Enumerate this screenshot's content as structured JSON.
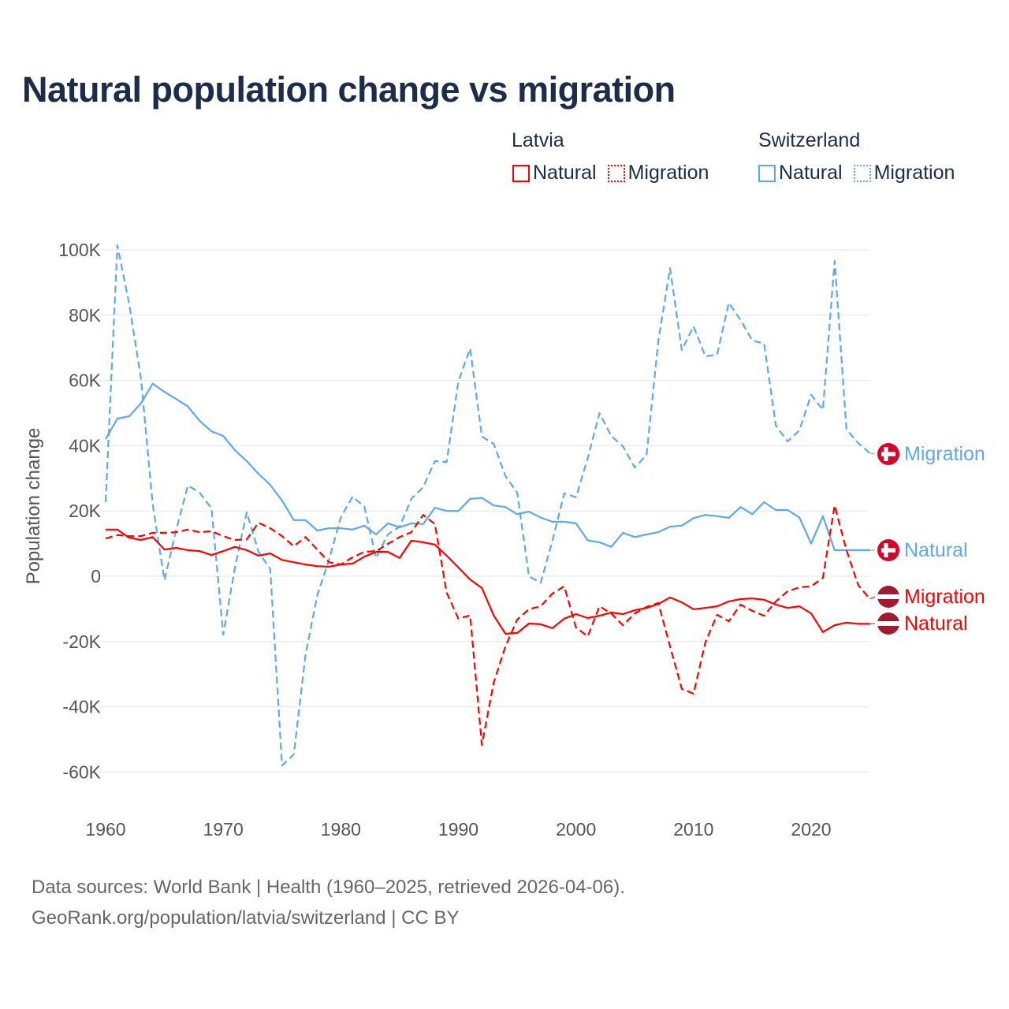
{
  "title": "Natural population change vs migration",
  "legend": {
    "groups": [
      {
        "name": "Latvia",
        "items": [
          "Natural",
          "Migration"
        ],
        "color": "#ff0000"
      },
      {
        "name": "Switzerland",
        "items": [
          "Natural",
          "Migration"
        ],
        "color": "#5ea8ee"
      }
    ]
  },
  "footer": {
    "line1": "Data sources: World Bank | Health (1960–2025, retrieved 2026-04-06).",
    "line2": "GeoRank.org/population/latvia/switzerland | CC BY"
  },
  "chart_data": {
    "type": "line",
    "title": "Natural population change vs migration",
    "xlabel": "",
    "ylabel": "Population change",
    "xlim": [
      1960,
      2025
    ],
    "ylim": [
      -70000,
      100000
    ],
    "xticks": [
      1960,
      1970,
      1980,
      1990,
      2000,
      2010,
      2020
    ],
    "xtick_labels": [
      "1960",
      "1970",
      "1980",
      "1990",
      "2000",
      "2010",
      "2020"
    ],
    "yticks": [
      100000,
      80000,
      60000,
      40000,
      20000,
      0,
      -20000,
      -40000,
      -60000
    ],
    "ytick_labels": [
      "100K",
      "80K",
      "60K",
      "40K",
      "20K",
      "0",
      "-20K",
      "-40K",
      "-60K"
    ],
    "grid": true,
    "legend_position": "top-right",
    "x_start": 1960,
    "series": [
      {
        "name": "Switzerland Natural",
        "label": "Natural",
        "country": "Switzerland",
        "color": "#5ea8ee",
        "dash": false,
        "values_k": [
          42,
          48.3,
          49,
          53,
          59,
          56.5,
          54.3,
          52,
          47.6,
          44.4,
          43,
          38.6,
          35.3,
          31.4,
          28,
          23.2,
          17.2,
          17.2,
          14,
          14.7,
          14.7,
          14.3,
          15.5,
          12.8,
          16.2,
          15,
          16.2,
          16,
          21,
          20,
          20,
          23.7,
          24,
          21.7,
          21.2,
          19,
          19.8,
          18,
          16.7,
          16.7,
          16.2,
          11,
          10.4,
          9,
          13.3,
          12,
          12.8,
          13.5,
          15.2,
          15.5,
          17.8,
          18.8,
          18.4,
          17.9,
          21.2,
          19,
          22.7,
          20.3,
          20.3,
          18,
          10,
          18.4,
          8,
          8,
          8,
          8
        ]
      },
      {
        "name": "Switzerland Migration",
        "label": "Migration",
        "country": "Switzerland",
        "color": "#5ea8ee",
        "dash": true,
        "values_k": [
          22.7,
          101.4,
          83.6,
          60.6,
          22,
          -1.2,
          14.2,
          27.8,
          25.6,
          20.8,
          -17.9,
          2.7,
          19.6,
          7.5,
          2.2,
          -58,
          -54.6,
          -24,
          -5.8,
          5,
          18,
          24.4,
          21.3,
          5.6,
          12.8,
          15.2,
          23.7,
          27.3,
          35.3,
          35,
          59.7,
          69.8,
          42.8,
          40.6,
          30.7,
          25.6,
          0,
          -2,
          10.9,
          25.4,
          24.2,
          36.2,
          50,
          43,
          39.8,
          33.3,
          37.2,
          72,
          94.4,
          69.3,
          76.6,
          67.4,
          67.9,
          83.8,
          78.5,
          72.2,
          71.3,
          46.1,
          41.3,
          44.7,
          55.6,
          51,
          96.6,
          45,
          40.8,
          37.7
        ]
      },
      {
        "name": "Latvia Natural",
        "label": "Natural",
        "country": "Latvia",
        "color": "#ff0000",
        "dash": false,
        "values_k": [
          14.3,
          14.3,
          11.8,
          11.1,
          12,
          8.2,
          8.7,
          8,
          7.7,
          6.5,
          7.7,
          9,
          8,
          6.3,
          7,
          5,
          4.3,
          3.6,
          3.1,
          2.9,
          3.6,
          3.9,
          6,
          7.5,
          7.5,
          5.6,
          10.9,
          10.4,
          9.7,
          6.3,
          2.7,
          -1,
          -3.6,
          -12,
          -17.6,
          -17.4,
          -14.5,
          -14.7,
          -15.9,
          -13,
          -11.6,
          -12.8,
          -12.1,
          -11.1,
          -11.6,
          -10.4,
          -9.7,
          -8.5,
          -6.5,
          -8,
          -10.1,
          -9.7,
          -9.2,
          -7.7,
          -7,
          -6.8,
          -7.2,
          -8.7,
          -9.7,
          -9.2,
          -11.4,
          -17.1,
          -15,
          -14.2,
          -14.6,
          -14.6
        ]
      },
      {
        "name": "Latvia Migration",
        "label": "Migration",
        "country": "Latvia",
        "color": "#ff0000",
        "dash": true,
        "values_k": [
          11.6,
          12.6,
          12.3,
          12.3,
          13.3,
          13.3,
          13.5,
          14.3,
          13.5,
          13.8,
          12.3,
          11.1,
          11.3,
          16.4,
          14.7,
          12.3,
          9.2,
          12,
          8.2,
          4.3,
          3.6,
          5.8,
          7.5,
          7.7,
          9.9,
          12,
          13.5,
          18.8,
          16,
          -5,
          -13,
          -12,
          -51.7,
          -32.6,
          -21.5,
          -13.3,
          -10.1,
          -9.2,
          -5.3,
          -3.1,
          -15.7,
          -18.4,
          -9.2,
          -11.4,
          -15,
          -11.4,
          -9.4,
          -8.2,
          -21.5,
          -34.5,
          -36,
          -20.3,
          -11.8,
          -13.8,
          -8.7,
          -10.6,
          -12.1,
          -7.7,
          -4.6,
          -3.4,
          -3.1,
          -0.5,
          21.7,
          8,
          -2.7,
          -7
        ]
      }
    ]
  }
}
